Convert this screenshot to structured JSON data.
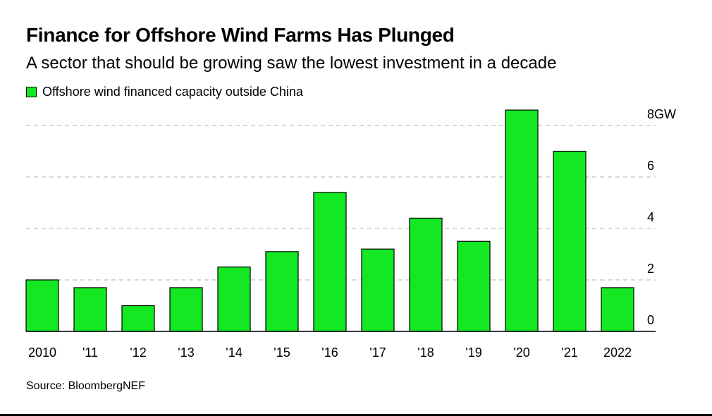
{
  "title": "Finance for Offshore Wind Farms Has Plunged",
  "subtitle": "A sector that should be growing saw the lowest investment in a decade",
  "source": "Source: BloombergNEF",
  "colors": {
    "bar": "#13e823",
    "grid": "#cccccc"
  },
  "chart_data": {
    "type": "bar",
    "categories": [
      "2010",
      "'11",
      "'12",
      "'13",
      "'14",
      "'15",
      "'16",
      "'17",
      "'18",
      "'19",
      "'20",
      "'21",
      "2022"
    ],
    "series": [
      {
        "name": "Offshore wind financed capacity outside China",
        "values": [
          2.0,
          1.7,
          1.0,
          1.7,
          2.5,
          3.1,
          5.4,
          3.2,
          4.4,
          3.5,
          8.6,
          7.0,
          1.7
        ]
      }
    ],
    "ylim": [
      0,
      8.6
    ],
    "yticks": [
      0,
      2,
      4,
      6,
      8
    ],
    "ytick_labels": [
      "0",
      "2",
      "4",
      "6",
      "8GW"
    ],
    "ylabel": "",
    "xlabel": "",
    "grid": true,
    "legend": "top-left"
  }
}
